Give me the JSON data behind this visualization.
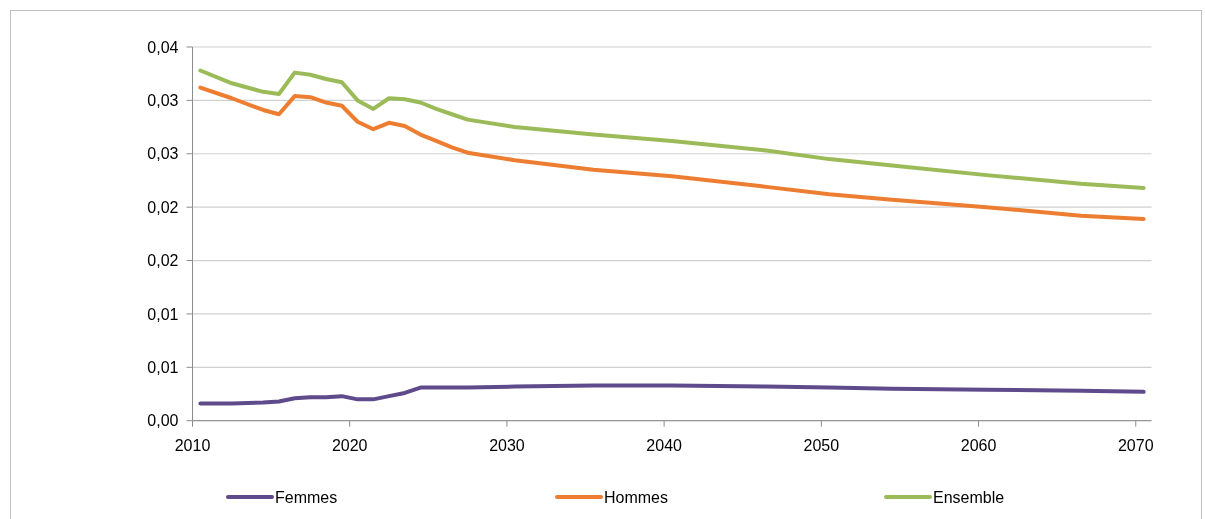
{
  "chart_data": {
    "type": "line",
    "x": [
      2010.5,
      2012.5,
      2014.5,
      2015.5,
      2016.5,
      2017.5,
      2018.5,
      2019.5,
      2020.5,
      2021.5,
      2022.5,
      2023.5,
      2024.5,
      2025.5,
      2026.5,
      2027.5,
      2030.5,
      2035.5,
      2040.5,
      2046.5,
      2050.5,
      2054.5,
      2060.5,
      2066.5,
      2070.5
    ],
    "series": [
      {
        "name": "Femmes",
        "color": "#5f4b8b",
        "values": [
          0.0016,
          0.0016,
          0.0017,
          0.0018,
          0.0021,
          0.0022,
          0.0022,
          0.0023,
          0.002,
          0.002,
          0.0023,
          0.0026,
          0.0031,
          0.0031,
          0.0031,
          0.0031,
          0.0032,
          0.0033,
          0.0033,
          0.0032,
          0.0031,
          0.003,
          0.0029,
          0.0028,
          0.0027
        ]
      },
      {
        "name": "Hommes",
        "color": "#ed7d31",
        "values": [
          0.0312,
          0.0302,
          0.0291,
          0.0287,
          0.0304,
          0.0303,
          0.0298,
          0.0295,
          0.028,
          0.0273,
          0.0279,
          0.0276,
          0.0268,
          0.0262,
          0.0256,
          0.0251,
          0.0244,
          0.0235,
          0.0229,
          0.0219,
          0.0212,
          0.0207,
          0.02,
          0.0192,
          0.0189
        ]
      },
      {
        "name": "Ensemble",
        "color": "#9bbb59",
        "values": [
          0.0328,
          0.0316,
          0.0308,
          0.0306,
          0.0326,
          0.0324,
          0.032,
          0.0317,
          0.03,
          0.0292,
          0.0302,
          0.0301,
          0.0298,
          0.0292,
          0.0287,
          0.0282,
          0.0275,
          0.0268,
          0.0262,
          0.0253,
          0.0245,
          0.0239,
          0.023,
          0.0222,
          0.0218
        ]
      }
    ],
    "xlim": [
      2010,
      2071
    ],
    "xticks": [
      2010,
      2020,
      2030,
      2040,
      2050,
      2060,
      2070
    ],
    "ylim": [
      0,
      0.035
    ],
    "yticks": [
      {
        "value": 0,
        "label": "0,00"
      },
      {
        "value": 0.005,
        "label": "0,01"
      },
      {
        "value": 0.01,
        "label": "0,01"
      },
      {
        "value": 0.015,
        "label": "0,02"
      },
      {
        "value": 0.02,
        "label": "0,02"
      },
      {
        "value": 0.025,
        "label": "0,03"
      },
      {
        "value": 0.03,
        "label": "0,03"
      },
      {
        "value": 0.035,
        "label": "0,04"
      }
    ],
    "grid": "y",
    "legend": "bottom",
    "marker": "none",
    "line_style": "solid"
  }
}
